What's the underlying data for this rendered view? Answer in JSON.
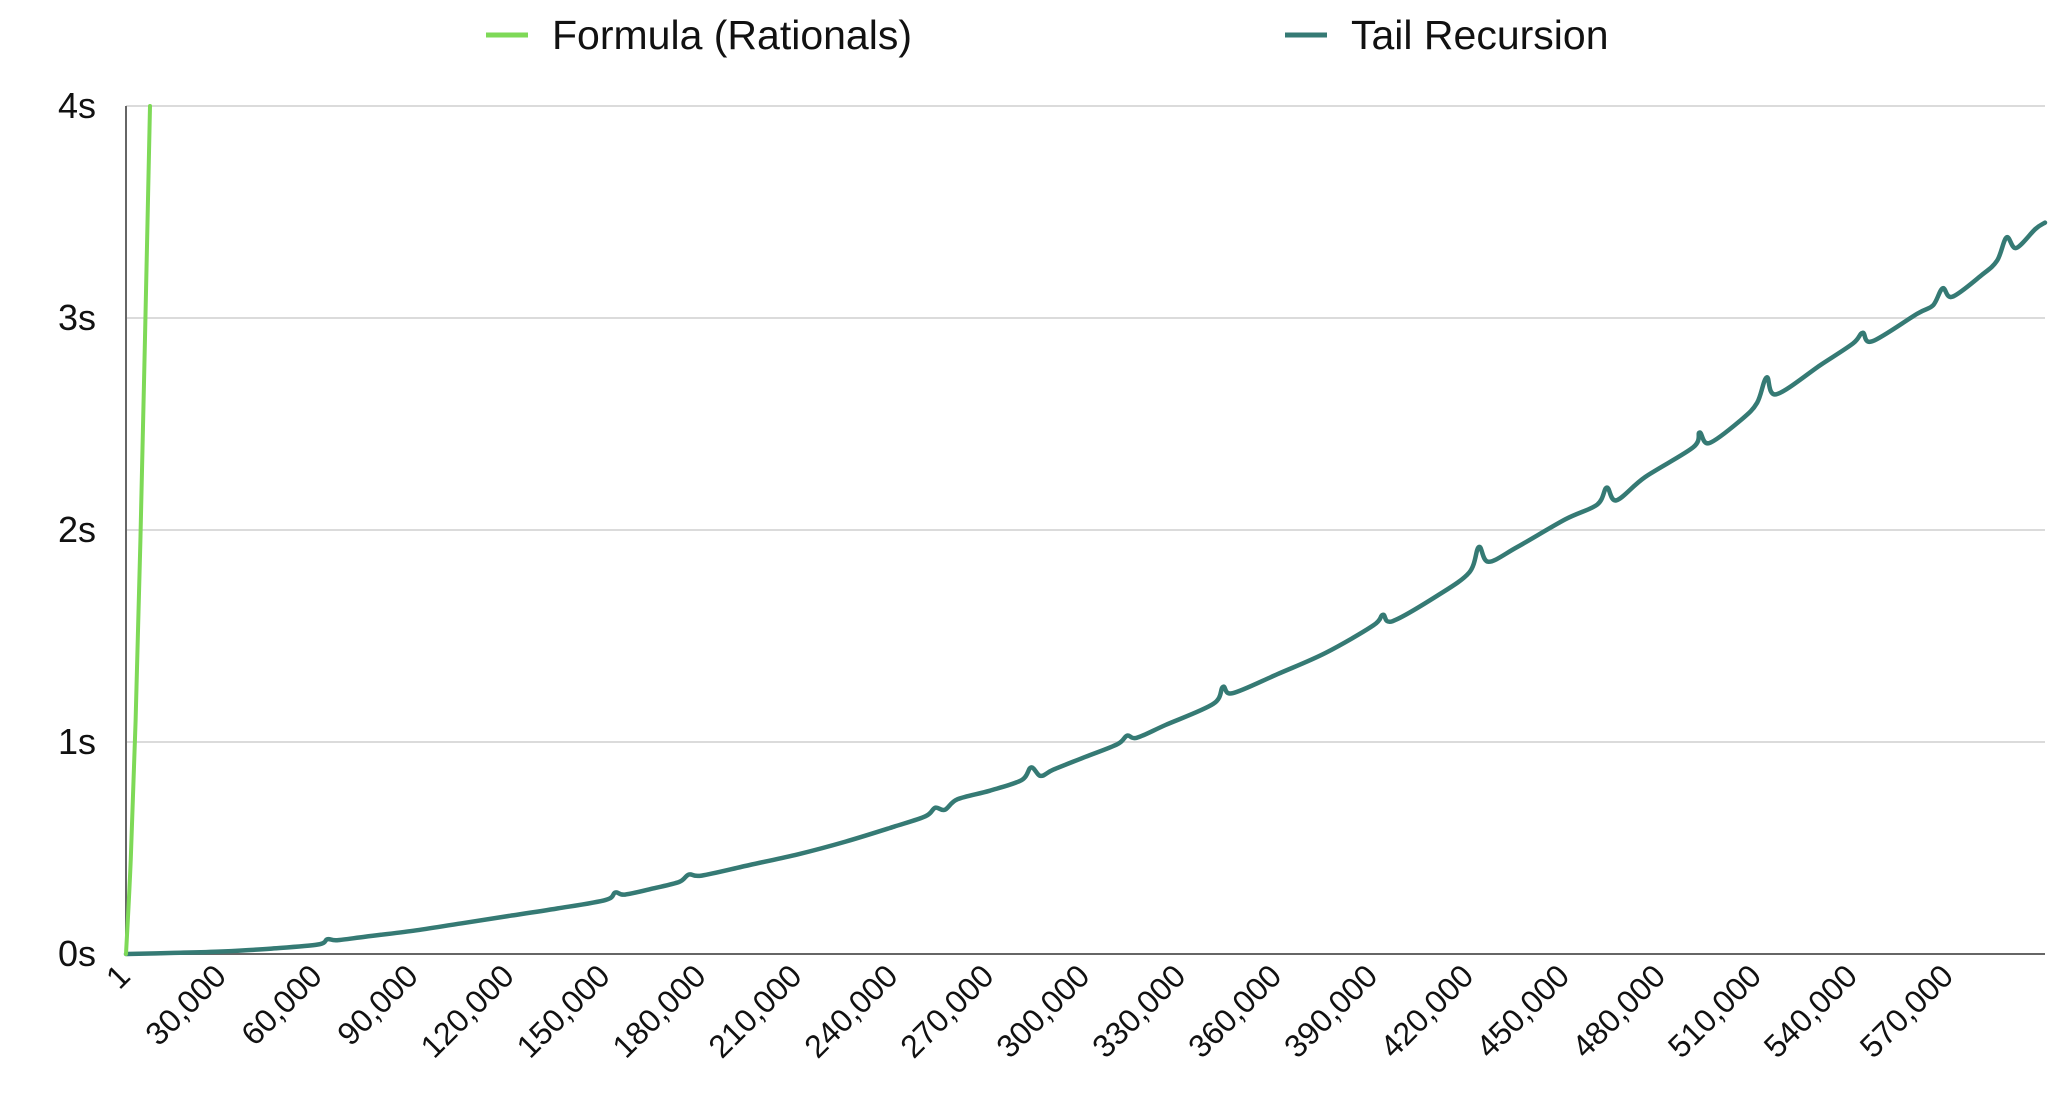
{
  "chart_data": {
    "type": "line",
    "title": "",
    "xlabel": "",
    "ylabel": "",
    "x_unit_note": "",
    "y_tick_labels": [
      "0s",
      "1s",
      "2s",
      "3s",
      "4s"
    ],
    "y_ticks": [
      0,
      1,
      2,
      3,
      4
    ],
    "ylim": [
      0,
      4
    ],
    "xlim": [
      1,
      600000
    ],
    "x_tick_labels": [
      "1",
      "30,000",
      "60,000",
      "90,000",
      "120,000",
      "150,000",
      "180,000",
      "210,000",
      "240,000",
      "270,000",
      "300,000",
      "330,000",
      "360,000",
      "390,000",
      "420,000",
      "450,000",
      "480,000",
      "510,000",
      "540,000",
      "570,000"
    ],
    "x_ticks": [
      1,
      30000,
      60000,
      90000,
      120000,
      150000,
      180000,
      210000,
      240000,
      270000,
      300000,
      330000,
      360000,
      390000,
      420000,
      450000,
      480000,
      510000,
      540000,
      570000
    ],
    "grid": "horizontal",
    "legend_position": "top",
    "series": [
      {
        "name": "Formula (Rationals)",
        "color": "#7ed957",
        "x": [
          1,
          1500,
          3000,
          4500,
          6000,
          7500
        ],
        "values": [
          0,
          0.45,
          1.1,
          1.95,
          2.95,
          4.0
        ]
      },
      {
        "name": "Tail Recursion",
        "color": "#357a74",
        "x": [
          1,
          15000,
          30000,
          45000,
          60000,
          63000,
          66000,
          75000,
          90000,
          105000,
          120000,
          135000,
          150000,
          153000,
          156000,
          165000,
          173000,
          176000,
          180000,
          195000,
          210000,
          225000,
          240000,
          250000,
          253000,
          256000,
          260000,
          270000,
          280000,
          283000,
          286000,
          290000,
          300000,
          310000,
          313000,
          316000,
          325000,
          340000,
          343000,
          346000,
          360000,
          375000,
          390000,
          393000,
          396000,
          410000,
          420000,
          423000,
          426000,
          435000,
          450000,
          460000,
          463000,
          466000,
          475000,
          490000,
          492000,
          495000,
          505000,
          510000,
          513000,
          516000,
          530000,
          540000,
          543000,
          546000,
          560000,
          565000,
          568000,
          571000,
          580000,
          585000,
          588000,
          591000,
          597000,
          600000
        ],
        "values": [
          0.0,
          0.005,
          0.012,
          0.025,
          0.045,
          0.07,
          0.065,
          0.082,
          0.11,
          0.145,
          0.18,
          0.215,
          0.255,
          0.29,
          0.28,
          0.31,
          0.34,
          0.375,
          0.37,
          0.42,
          0.47,
          0.53,
          0.6,
          0.65,
          0.69,
          0.68,
          0.73,
          0.77,
          0.82,
          0.88,
          0.84,
          0.87,
          0.93,
          0.99,
          1.03,
          1.02,
          1.08,
          1.18,
          1.26,
          1.23,
          1.32,
          1.42,
          1.55,
          1.6,
          1.57,
          1.69,
          1.8,
          1.92,
          1.85,
          1.92,
          2.05,
          2.12,
          2.2,
          2.14,
          2.25,
          2.39,
          2.46,
          2.41,
          2.52,
          2.6,
          2.72,
          2.64,
          2.78,
          2.88,
          2.93,
          2.89,
          3.02,
          3.06,
          3.14,
          3.1,
          3.2,
          3.27,
          3.38,
          3.33,
          3.42,
          3.45
        ]
      }
    ]
  }
}
